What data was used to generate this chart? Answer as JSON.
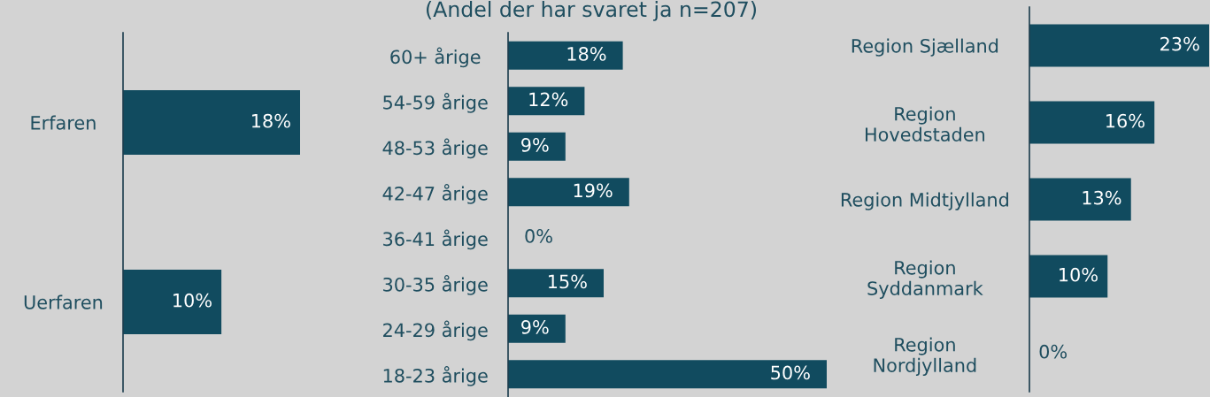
{
  "chart_data": [
    {
      "type": "bar",
      "orientation": "horizontal",
      "categories": [
        "Erfaren",
        "Uerfaren"
      ],
      "values": [
        18,
        10
      ],
      "value_labels": [
        "18%",
        "10%"
      ],
      "color": "#114b5f",
      "xlim": [
        0,
        18
      ],
      "grid": false,
      "legend": false
    },
    {
      "type": "bar",
      "orientation": "horizontal",
      "title": "(Andel der har svaret ja n=207)",
      "categories": [
        "60+ årige",
        "54-59 årige",
        "48-53 årige",
        "42-47 årige",
        "36-41 årige",
        "30-35 årige",
        "24-29 årige",
        "18-23 årige"
      ],
      "values": [
        18,
        12,
        9,
        19,
        0,
        15,
        9,
        50
      ],
      "value_labels": [
        "18%",
        "12%",
        "9%",
        "19%",
        "0%",
        "15%",
        "9%",
        "50%"
      ],
      "color": "#114b5f",
      "xlim": [
        0,
        50
      ],
      "grid": false,
      "legend": false
    },
    {
      "type": "bar",
      "orientation": "horizontal",
      "categories": [
        "Region Sjælland",
        "Region\nHovedstaden",
        "Region Midtjylland",
        "Region\nSyddanmark",
        "Region\nNordjylland"
      ],
      "values": [
        23,
        16,
        13,
        10,
        0
      ],
      "value_labels": [
        "23%",
        "16%",
        "13%",
        "10%",
        "0%"
      ],
      "color": "#114b5f",
      "xlim": [
        0,
        23
      ],
      "grid": false,
      "legend": false
    }
  ]
}
